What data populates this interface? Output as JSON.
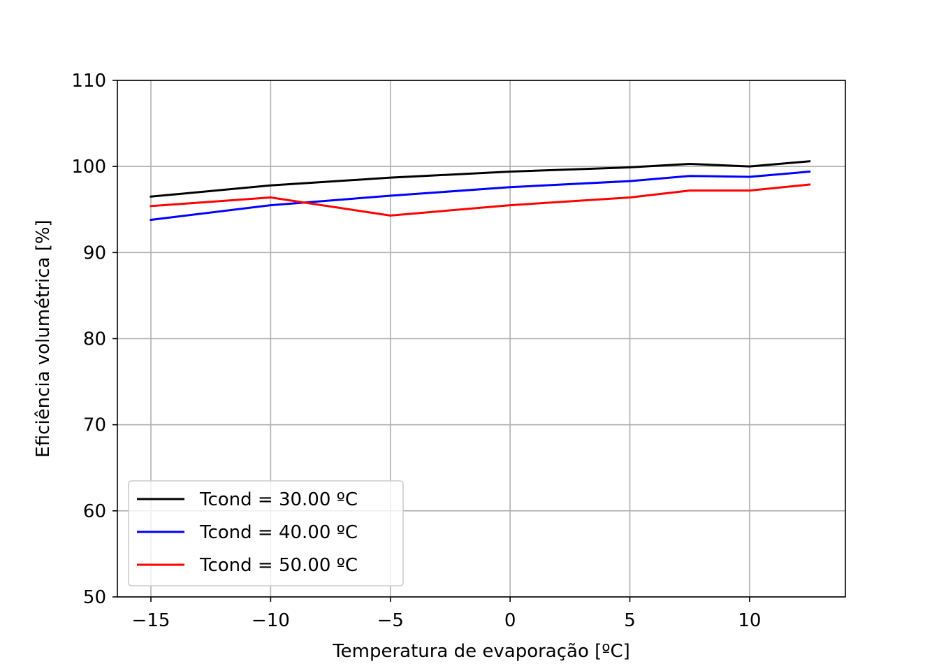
{
  "chart_data": {
    "type": "line",
    "title": "",
    "xlabel": "Temperatura de evaporação [ºC]",
    "ylabel": "Eficiência volumétrica [%]",
    "xlim": [
      -16.4,
      14
    ],
    "ylim": [
      50,
      110
    ],
    "xticks": [
      -15,
      -10,
      -5,
      0,
      5,
      10
    ],
    "xtick_labels": [
      "−15",
      "−10",
      "−5",
      "0",
      "5",
      "10"
    ],
    "yticks": [
      50,
      60,
      70,
      80,
      90,
      100,
      110
    ],
    "ytick_labels": [
      "50",
      "60",
      "70",
      "80",
      "90",
      "100",
      "110"
    ],
    "grid": true,
    "legend_position": "lower-left",
    "x": [
      -15,
      -10,
      -5,
      0,
      5,
      7.5,
      10,
      12.5
    ],
    "series": [
      {
        "name": "Tcond = 30.00 ºC",
        "color": "#000000",
        "values": [
          96.5,
          97.8,
          98.7,
          99.4,
          99.9,
          100.3,
          100.0,
          100.6
        ]
      },
      {
        "name": "Tcond = 40.00 ºC",
        "color": "#0000ff",
        "values": [
          93.8,
          95.5,
          96.6,
          97.6,
          98.3,
          98.9,
          98.8,
          99.4
        ]
      },
      {
        "name": "Tcond = 50.00 ºC",
        "color": "#ff0000",
        "values": [
          95.4,
          96.4,
          94.3,
          95.5,
          96.4,
          97.2,
          97.2,
          97.9
        ]
      }
    ]
  }
}
